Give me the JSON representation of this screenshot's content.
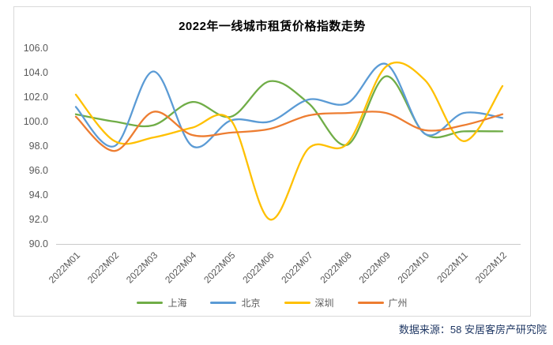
{
  "header": {
    "title": "2022年一线城市租赁价格指数走势"
  },
  "source_note": "数据来源：58 安居客房产研究院",
  "chart_data": {
    "type": "line",
    "smooth": true,
    "title": "2022年一线城市租赁价格指数走势",
    "categories": [
      "2022M01",
      "2022M02",
      "2022M03",
      "2022M04",
      "2022M05",
      "2022M06",
      "2022M07",
      "2022M08",
      "2022M09",
      "2022M10",
      "2022M11",
      "2022M12"
    ],
    "series": [
      {
        "key": "shanghai",
        "name": "上海",
        "color": "#70AD47",
        "values": [
          100.6,
          100.0,
          99.7,
          101.6,
          100.4,
          103.3,
          101.5,
          98.1,
          103.7,
          99.0,
          99.2,
          99.2
        ]
      },
      {
        "key": "beijing",
        "name": "北京",
        "color": "#5B9BD5",
        "values": [
          101.2,
          98.0,
          104.1,
          98.0,
          100.1,
          100.0,
          101.8,
          101.5,
          104.7,
          99.0,
          100.7,
          100.3
        ]
      },
      {
        "key": "shenzhen",
        "name": "深圳",
        "color": "#FFC000",
        "values": [
          102.2,
          98.4,
          98.7,
          99.5,
          100.1,
          92.0,
          97.8,
          98.2,
          104.5,
          103.4,
          98.4,
          102.9
        ]
      },
      {
        "key": "guangzhou",
        "name": "广州",
        "color": "#ED7D31",
        "values": [
          100.4,
          97.6,
          100.8,
          98.9,
          99.1,
          99.4,
          100.5,
          100.7,
          100.7,
          99.3,
          99.7,
          100.6
        ]
      }
    ],
    "ylim": [
      90,
      106
    ],
    "ytick_step": 2,
    "ytick_labels": [
      "106.0",
      "104.0",
      "102.0",
      "100.0",
      "98.0",
      "96.0",
      "94.0",
      "92.0",
      "90.0"
    ],
    "grid": false,
    "legend_position": "bottom",
    "axis_line_color": "#C9C9C9",
    "label_color": "#595959",
    "line_width": 2.3
  }
}
